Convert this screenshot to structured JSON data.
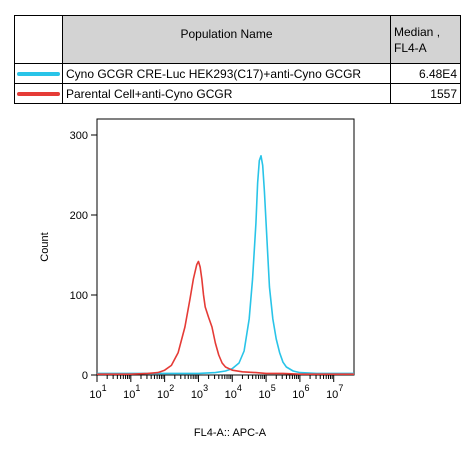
{
  "legend": {
    "headers": {
      "population": "Population Name",
      "median": "Median ,",
      "median_sub": "FL4-A"
    },
    "rows": [
      {
        "name": "Cyno GCGR CRE-Luc HEK293(C17)+anti-Cyno GCGR",
        "median": "6.48E4",
        "color": "#29c4e8"
      },
      {
        "name": "Parental Cell+anti-Cyno GCGR",
        "median": "1557",
        "color": "#e53b36"
      }
    ]
  },
  "chart_data": {
    "type": "line",
    "xlabel": "FL4-A:: APC-A",
    "ylabel": "Count",
    "xscale": "log",
    "xlim": [
      0,
      7.6
    ],
    "ylim": [
      0,
      320
    ],
    "x_ticks": [
      {
        "pos": 0,
        "base": "10",
        "exp": "1"
      },
      {
        "pos": 1,
        "base": "10",
        "exp": "1"
      },
      {
        "pos": 2,
        "base": "10",
        "exp": "2"
      },
      {
        "pos": 3,
        "base": "10",
        "exp": "3"
      },
      {
        "pos": 4,
        "base": "10",
        "exp": "4"
      },
      {
        "pos": 5,
        "base": "10",
        "exp": "5"
      },
      {
        "pos": 6,
        "base": "10",
        "exp": "6"
      },
      {
        "pos": 7,
        "base": "10",
        "exp": "7"
      }
    ],
    "y_ticks": [
      0,
      100,
      200,
      300
    ],
    "series": [
      {
        "name": "Cyno GCGR CRE-Luc HEK293(C17)+anti-Cyno GCGR",
        "color": "#29c4e8",
        "x": [
          0.0,
          1.0,
          2.0,
          3.0,
          3.5,
          3.8,
          4.0,
          4.2,
          4.35,
          4.5,
          4.6,
          4.7,
          4.75,
          4.8,
          4.85,
          4.9,
          4.95,
          5.0,
          5.05,
          5.1,
          5.2,
          5.3,
          5.4,
          5.5,
          5.6,
          5.8,
          6.0,
          6.5,
          7.0,
          7.6
        ],
        "y": [
          2,
          2,
          2,
          2,
          3,
          5,
          8,
          15,
          30,
          70,
          120,
          190,
          240,
          268,
          274,
          262,
          230,
          190,
          150,
          110,
          70,
          45,
          28,
          16,
          10,
          5,
          3,
          2,
          2,
          2
        ]
      },
      {
        "name": "Parental Cell+anti-Cyno GCGR",
        "color": "#e53b36",
        "x": [
          0.0,
          1.0,
          1.5,
          1.8,
          2.0,
          2.2,
          2.4,
          2.6,
          2.75,
          2.85,
          2.95,
          3.0,
          3.05,
          3.1,
          3.15,
          3.2,
          3.3,
          3.4,
          3.5,
          3.6,
          3.7,
          3.8,
          4.0,
          4.3,
          4.7,
          5.0,
          5.5,
          6.0,
          7.0,
          7.6
        ],
        "y": [
          1,
          1,
          2,
          3,
          6,
          12,
          28,
          60,
          95,
          120,
          138,
          142,
          135,
          120,
          100,
          85,
          72,
          60,
          40,
          25,
          15,
          10,
          6,
          4,
          3,
          2,
          2,
          1,
          1,
          1
        ]
      }
    ]
  }
}
